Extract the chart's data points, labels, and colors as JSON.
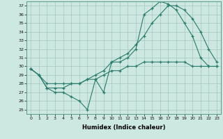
{
  "xlabel": "Humidex (Indice chaleur)",
  "ylabel": "",
  "background_color": "#cce8e0",
  "line_color": "#2a7a6a",
  "xlim": [
    -0.5,
    23.5
  ],
  "ylim": [
    24.5,
    37.5
  ],
  "yticks": [
    25,
    26,
    27,
    28,
    29,
    30,
    31,
    32,
    33,
    34,
    35,
    36,
    37
  ],
  "xticks": [
    0,
    1,
    2,
    3,
    4,
    5,
    6,
    7,
    8,
    9,
    10,
    11,
    12,
    13,
    14,
    15,
    16,
    17,
    18,
    19,
    20,
    21,
    22,
    23
  ],
  "line1_x": [
    0,
    1,
    2,
    3,
    4,
    5,
    6,
    7,
    8,
    9,
    10,
    11,
    12,
    13,
    14,
    15,
    16,
    17,
    18,
    19,
    20,
    21,
    22,
    23
  ],
  "line1_y": [
    29.7,
    29.0,
    27.5,
    27.0,
    27.0,
    26.5,
    26.0,
    25.0,
    28.5,
    27.0,
    30.5,
    30.5,
    31.0,
    32.0,
    36.0,
    36.7,
    37.5,
    37.2,
    36.5,
    35.0,
    33.5,
    31.0,
    30.0,
    30.0
  ],
  "line2_x": [
    0,
    1,
    2,
    3,
    4,
    5,
    6,
    7,
    8,
    9,
    10,
    11,
    12,
    13,
    14,
    15,
    16,
    17,
    18,
    19,
    20,
    21,
    22,
    23
  ],
  "line2_y": [
    29.7,
    29.0,
    27.5,
    27.5,
    27.5,
    28.0,
    28.0,
    28.5,
    29.0,
    29.5,
    30.5,
    31.0,
    31.5,
    32.5,
    33.5,
    35.0,
    36.0,
    37.0,
    37.0,
    36.5,
    35.5,
    34.0,
    32.0,
    30.5
  ],
  "line3_x": [
    0,
    1,
    2,
    3,
    4,
    5,
    6,
    7,
    8,
    9,
    10,
    11,
    12,
    13,
    14,
    15,
    16,
    17,
    18,
    19,
    20,
    21,
    22,
    23
  ],
  "line3_y": [
    29.7,
    29.0,
    28.0,
    28.0,
    28.0,
    28.0,
    28.0,
    28.5,
    28.5,
    29.0,
    29.5,
    29.5,
    30.0,
    30.0,
    30.5,
    30.5,
    30.5,
    30.5,
    30.5,
    30.5,
    30.0,
    30.0,
    30.0,
    30.0
  ]
}
